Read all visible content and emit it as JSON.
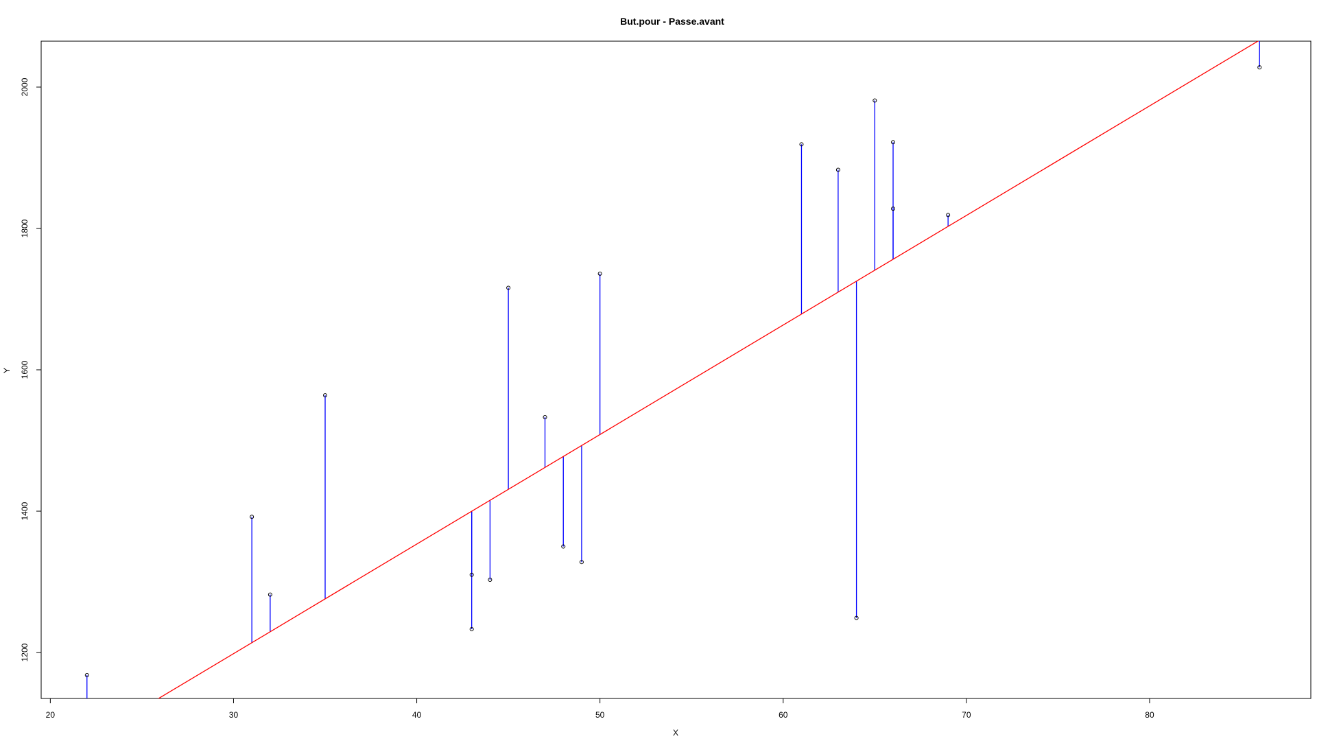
{
  "chart_data": {
    "type": "scatter",
    "title": "But.pour  -  Passe.avant",
    "xlabel": "X",
    "ylabel": "Y",
    "xlim": [
      19.5,
      88.8
    ],
    "ylim": [
      1135,
      2065
    ],
    "x_ticks": [
      20,
      30,
      40,
      50,
      60,
      70,
      80
    ],
    "y_ticks": [
      1200,
      1400,
      1600,
      1800,
      2000
    ],
    "x_tick_labels": [
      "20",
      "30",
      "40",
      "50",
      "60",
      "70",
      "80"
    ],
    "y_tick_labels": [
      "1200",
      "1400",
      "1600",
      "1800",
      "2000"
    ],
    "grid": false,
    "regression_line": {
      "intercept": 733.4,
      "slope": 15.5,
      "color": "#ff0000"
    },
    "residual_color": "#0000ff",
    "point_color": "#000000",
    "points": [
      {
        "x": 22,
        "y": 1168
      },
      {
        "x": 31,
        "y": 1392
      },
      {
        "x": 32,
        "y": 1282
      },
      {
        "x": 35,
        "y": 1564
      },
      {
        "x": 43,
        "y": 1310
      },
      {
        "x": 43,
        "y": 1233
      },
      {
        "x": 44,
        "y": 1303
      },
      {
        "x": 45,
        "y": 1716
      },
      {
        "x": 47,
        "y": 1533
      },
      {
        "x": 48,
        "y": 1350
      },
      {
        "x": 49,
        "y": 1328
      },
      {
        "x": 50,
        "y": 1736
      },
      {
        "x": 61,
        "y": 1919
      },
      {
        "x": 63,
        "y": 1883
      },
      {
        "x": 64,
        "y": 1249
      },
      {
        "x": 65,
        "y": 1981
      },
      {
        "x": 66,
        "y": 1922
      },
      {
        "x": 66,
        "y": 1828
      },
      {
        "x": 69,
        "y": 1819
      },
      {
        "x": 86,
        "y": 2028
      }
    ]
  }
}
